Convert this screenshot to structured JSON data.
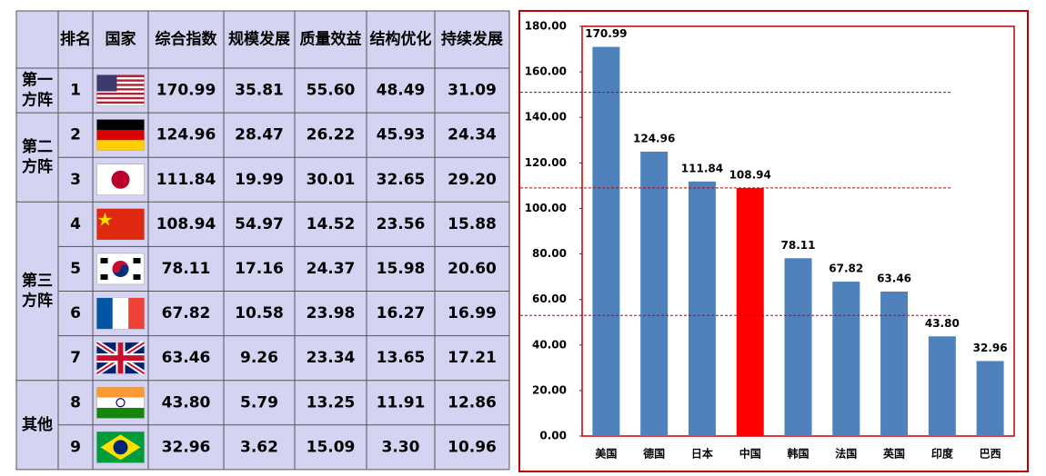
{
  "table": {
    "header": [
      "排名",
      "国家",
      "综合指数",
      "规模发展",
      "质量效益",
      "结构优化",
      "持续发展"
    ],
    "groups": [
      {
        "label": [
          "第一",
          "方阵"
        ],
        "rows": [
          [
            "1",
            "170.99",
            "35.81",
            "55.60",
            "48.49",
            "31.09"
          ]
        ]
      },
      {
        "label": [
          "第二",
          "方阵"
        ],
        "rows": [
          [
            "2",
            "124.96",
            "28.47",
            "26.22",
            "45.93",
            "24.34"
          ],
          [
            "3",
            "111.84",
            "19.99",
            "30.01",
            "32.65",
            "29.20"
          ]
        ]
      },
      {
        "label": [
          "第三",
          "方阵"
        ],
        "rows": [
          [
            "4",
            "108.94",
            "54.97",
            "14.52",
            "23.56",
            "15.88"
          ],
          [
            "5",
            "78.11",
            "17.16",
            "24.37",
            "15.98",
            "20.60"
          ],
          [
            "6",
            "67.82",
            "10.58",
            "23.98",
            "16.27",
            "16.99"
          ],
          [
            "7",
            "63.46",
            "9.26",
            "23.34",
            "13.65",
            "17.21"
          ]
        ]
      },
      {
        "label": [
          "其他"
        ],
        "rows": [
          [
            "8",
            "43.80",
            "5.79",
            "13.25",
            "11.91",
            "12.86"
          ],
          [
            "9",
            "32.96",
            "3.62",
            "15.09",
            "3.30",
            "10.96"
          ]
        ]
      }
    ]
  },
  "chart_data": {
    "type": "bar",
    "categories": [
      "美国",
      "德国",
      "日本",
      "中国",
      "韩国",
      "法国",
      "英国",
      "印度",
      "巴西"
    ],
    "values": [
      170.99,
      124.96,
      111.84,
      108.94,
      78.11,
      67.82,
      63.46,
      43.8,
      32.96
    ],
    "value_labels": [
      "170.99",
      "124.96",
      "111.84",
      "108.94",
      "78.11",
      "67.82",
      "63.46",
      "43.80",
      "32.96"
    ],
    "colors": [
      "#4f81bd",
      "#4f81bd",
      "#4f81bd",
      "#ff0000",
      "#4f81bd",
      "#4f81bd",
      "#4f81bd",
      "#4f81bd",
      "#4f81bd"
    ],
    "ylim": [
      0,
      180
    ],
    "yticks": [
      {
        "value": 0,
        "label": "0.00"
      },
      {
        "value": 20,
        "label": "20.00"
      },
      {
        "value": 40,
        "label": "40.00"
      },
      {
        "value": 60,
        "label": "60.00"
      },
      {
        "value": 80,
        "label": "80.00"
      },
      {
        "value": 100,
        "label": "100.00"
      },
      {
        "value": 120,
        "label": "120.00"
      },
      {
        "value": 140,
        "label": "140.00"
      },
      {
        "value": 160,
        "label": "160.00"
      },
      {
        "value": 180,
        "label": "180.00"
      }
    ],
    "reference_lines": [
      151,
      109,
      53
    ],
    "reference_color": "#c00000"
  }
}
